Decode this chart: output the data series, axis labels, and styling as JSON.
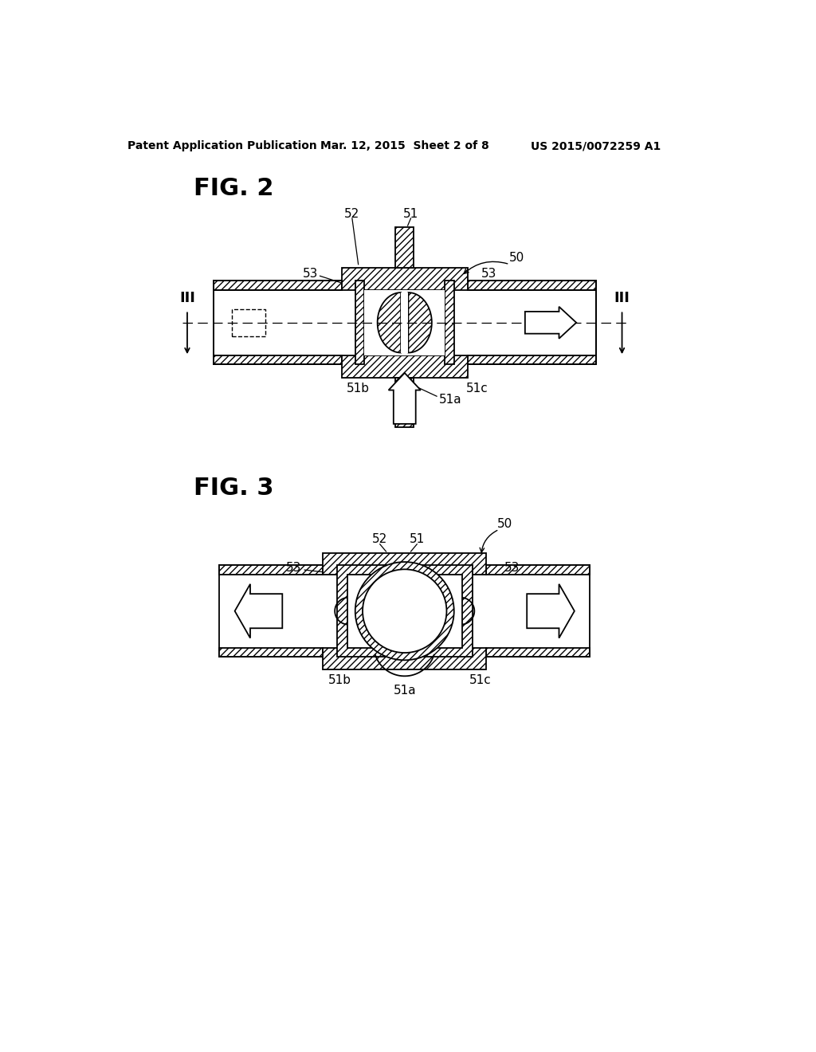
{
  "bg_color": "#ffffff",
  "header_left": "Patent Application Publication",
  "header_mid": "Mar. 12, 2015  Sheet 2 of 8",
  "header_right": "US 2015/0072259 A1",
  "fig2_label": "FIG. 2",
  "fig3_label": "FIG. 3",
  "line_color": "#000000"
}
